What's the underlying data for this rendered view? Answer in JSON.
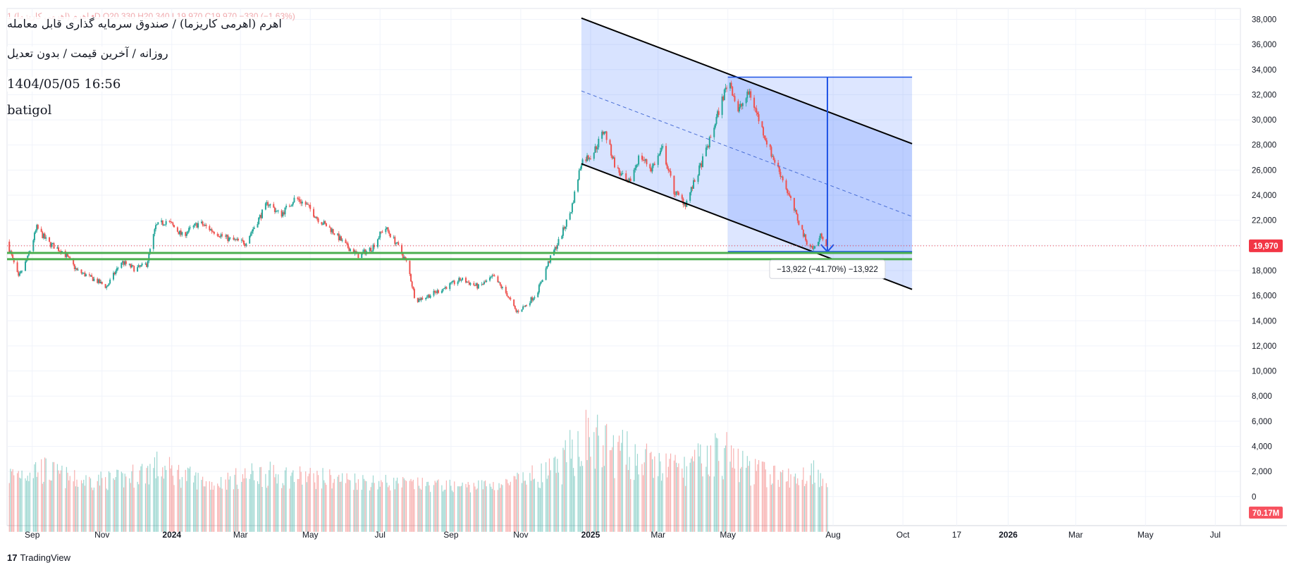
{
  "header": {
    "ohlc_line": "1 اهرم (اهرمی کاریزما) •D  O20,330  H20,340  L19,970  C19,970  −330 (−1.63%)",
    "title": "اهرم (اهرمی کاریزما) / صندوق سرمایه گذاری قابل معامله",
    "subtitle": "روزانه / آخرین قیمت / بدون تعدیل",
    "datetime": "1404/05/05 16:56",
    "author": "batigol"
  },
  "brand": {
    "name": "TradingView",
    "logo_text": "17"
  },
  "colors": {
    "up": "#26a69a",
    "down": "#ef5350",
    "grid": "#f0f3fa",
    "channel_line": "#000000",
    "channel_fill": "rgba(41,98,255,0.18)",
    "measure_fill": "rgba(41,98,255,0.16)",
    "measure_line": "#1e53e5",
    "support": "#4caf50",
    "price_badge": "#f23645",
    "volume_badge": "#f7525f"
  },
  "chart_data": {
    "type": "candlestick",
    "y_axis": {
      "ticks": [
        "38,000",
        "36,000",
        "34,000",
        "32,000",
        "30,000",
        "28,000",
        "26,000",
        "24,000",
        "22,000",
        "20,000",
        "18,000",
        "16,000",
        "14,000",
        "12,000",
        "10,000",
        "8,000",
        "6,000",
        "4,000",
        "2,000",
        "0"
      ],
      "range": [
        -2200,
        38700
      ]
    },
    "x_axis": {
      "ticks": [
        {
          "label": "Sep",
          "date": "2023-09-01"
        },
        {
          "label": "Nov",
          "date": "2023-11-01"
        },
        {
          "label": "2024",
          "date": "2024-01-01",
          "bold": true
        },
        {
          "label": "Mar",
          "date": "2024-03-01"
        },
        {
          "label": "May",
          "date": "2024-05-01"
        },
        {
          "label": "Jul",
          "date": "2024-07-01"
        },
        {
          "label": "Sep",
          "date": "2024-09-01"
        },
        {
          "label": "Nov",
          "date": "2024-11-01"
        },
        {
          "label": "2025",
          "date": "2025-01-01",
          "bold": true
        },
        {
          "label": "Mar",
          "date": "2025-03-01"
        },
        {
          "label": "May",
          "date": "2025-05-01"
        },
        {
          "label": "Aug",
          "date": "2025-08-01"
        },
        {
          "label": "Oct",
          "date": "2025-10-01"
        },
        {
          "label": "17",
          "date": "2025-11-17"
        },
        {
          "label": "2026",
          "date": "2026-01-01",
          "bold": true
        },
        {
          "label": "Mar",
          "date": "2026-03-01"
        },
        {
          "label": "May",
          "date": "2026-05-01"
        },
        {
          "label": "Jul",
          "date": "2026-07-01"
        }
      ],
      "range": [
        "2023-08-10",
        "2026-07-23"
      ]
    },
    "price_path": [
      [
        "2023-08-10",
        20300
      ],
      [
        "2023-08-20",
        17400
      ],
      [
        "2023-08-28",
        19000
      ],
      [
        "2023-09-05",
        21400
      ],
      [
        "2023-09-15",
        20200
      ],
      [
        "2023-09-28",
        19500
      ],
      [
        "2023-10-10",
        18000
      ],
      [
        "2023-10-25",
        17300
      ],
      [
        "2023-11-05",
        16700
      ],
      [
        "2023-11-18",
        18700
      ],
      [
        "2023-11-30",
        18100
      ],
      [
        "2023-12-10",
        18500
      ],
      [
        "2023-12-18",
        21500
      ],
      [
        "2023-12-28",
        22000
      ],
      [
        "2024-01-10",
        20800
      ],
      [
        "2024-01-25",
        21800
      ],
      [
        "2024-02-05",
        21200
      ],
      [
        "2024-02-20",
        20500
      ],
      [
        "2024-03-05",
        20200
      ],
      [
        "2024-03-15",
        21800
      ],
      [
        "2024-03-25",
        23400
      ],
      [
        "2024-04-05",
        22400
      ],
      [
        "2024-04-18",
        23800
      ],
      [
        "2024-04-28",
        23200
      ],
      [
        "2024-05-08",
        22100
      ],
      [
        "2024-05-20",
        21200
      ],
      [
        "2024-06-01",
        20000
      ],
      [
        "2024-06-12",
        19200
      ],
      [
        "2024-06-24",
        19800
      ],
      [
        "2024-07-05",
        21500
      ],
      [
        "2024-07-15",
        20200
      ],
      [
        "2024-07-25",
        18500
      ],
      [
        "2024-08-01",
        15600
      ],
      [
        "2024-08-15",
        16100
      ],
      [
        "2024-08-30",
        16800
      ],
      [
        "2024-09-10",
        17300
      ],
      [
        "2024-09-25",
        16700
      ],
      [
        "2024-10-08",
        17500
      ],
      [
        "2024-10-20",
        16100
      ],
      [
        "2024-10-28",
        14700
      ],
      [
        "2024-11-05",
        15200
      ],
      [
        "2024-11-15",
        16200
      ],
      [
        "2024-11-25",
        18600
      ],
      [
        "2024-12-05",
        20500
      ],
      [
        "2024-12-15",
        22800
      ],
      [
        "2024-12-24",
        26700
      ],
      [
        "2025-01-03",
        27300
      ],
      [
        "2025-01-13",
        29200
      ],
      [
        "2025-01-23",
        26200
      ],
      [
        "2025-02-03",
        24800
      ],
      [
        "2025-02-13",
        27200
      ],
      [
        "2025-02-23",
        26100
      ],
      [
        "2025-03-05",
        27700
      ],
      [
        "2025-03-15",
        24300
      ],
      [
        "2025-03-25",
        23300
      ],
      [
        "2025-04-05",
        25800
      ],
      [
        "2025-04-15",
        28300
      ],
      [
        "2025-04-25",
        31300
      ],
      [
        "2025-05-02",
        33300
      ],
      [
        "2025-05-10",
        30700
      ],
      [
        "2025-05-20",
        32200
      ],
      [
        "2025-05-30",
        29500
      ],
      [
        "2025-06-08",
        27300
      ],
      [
        "2025-06-18",
        25300
      ],
      [
        "2025-06-28",
        22800
      ],
      [
        "2025-07-08",
        20400
      ],
      [
        "2025-07-15",
        19700
      ],
      [
        "2025-07-22",
        20900
      ],
      [
        "2025-07-27",
        19970
      ]
    ],
    "volume_path": [
      [
        "2023-08-10",
        1800
      ],
      [
        "2023-09-05",
        2500
      ],
      [
        "2023-10-10",
        1400
      ],
      [
        "2023-11-18",
        1500
      ],
      [
        "2023-12-18",
        2600
      ],
      [
        "2024-02-05",
        1100
      ],
      [
        "2024-03-15",
        2000
      ],
      [
        "2024-04-28",
        1700
      ],
      [
        "2024-06-12",
        1400
      ],
      [
        "2024-07-25",
        1100
      ],
      [
        "2024-09-10",
        900
      ],
      [
        "2024-10-20",
        1100
      ],
      [
        "2024-12-05",
        2400
      ],
      [
        "2024-12-24",
        5200
      ],
      [
        "2025-01-13",
        4400
      ],
      [
        "2025-02-23",
        2800
      ],
      [
        "2025-03-25",
        2400
      ],
      [
        "2025-04-25",
        4000
      ],
      [
        "2025-05-20",
        2300
      ],
      [
        "2025-06-28",
        1500
      ],
      [
        "2025-07-15",
        2300
      ],
      [
        "2025-07-27",
        1500
      ]
    ],
    "last_price": 19970,
    "last_price_label": "19,970",
    "volume_label": "70.17M",
    "measure_label": "−13,922 (−41.70%) −13,922",
    "drawings": {
      "channel": {
        "upper": [
          [
            "2024-12-24",
            38100
          ],
          [
            "2025-10-09",
            28100
          ]
        ],
        "lower": [
          [
            "2024-12-24",
            26500
          ],
          [
            "2025-10-09",
            16500
          ]
        ],
        "mid": [
          [
            "2024-12-24",
            32300
          ],
          [
            "2025-10-09",
            22300
          ]
        ]
      },
      "measure": {
        "from_date": "2025-05-01",
        "to_date": "2025-10-09",
        "top": 33400,
        "bottom": 19500,
        "arrow_date": "2025-07-27"
      },
      "supports": [
        19400,
        18900
      ]
    }
  }
}
